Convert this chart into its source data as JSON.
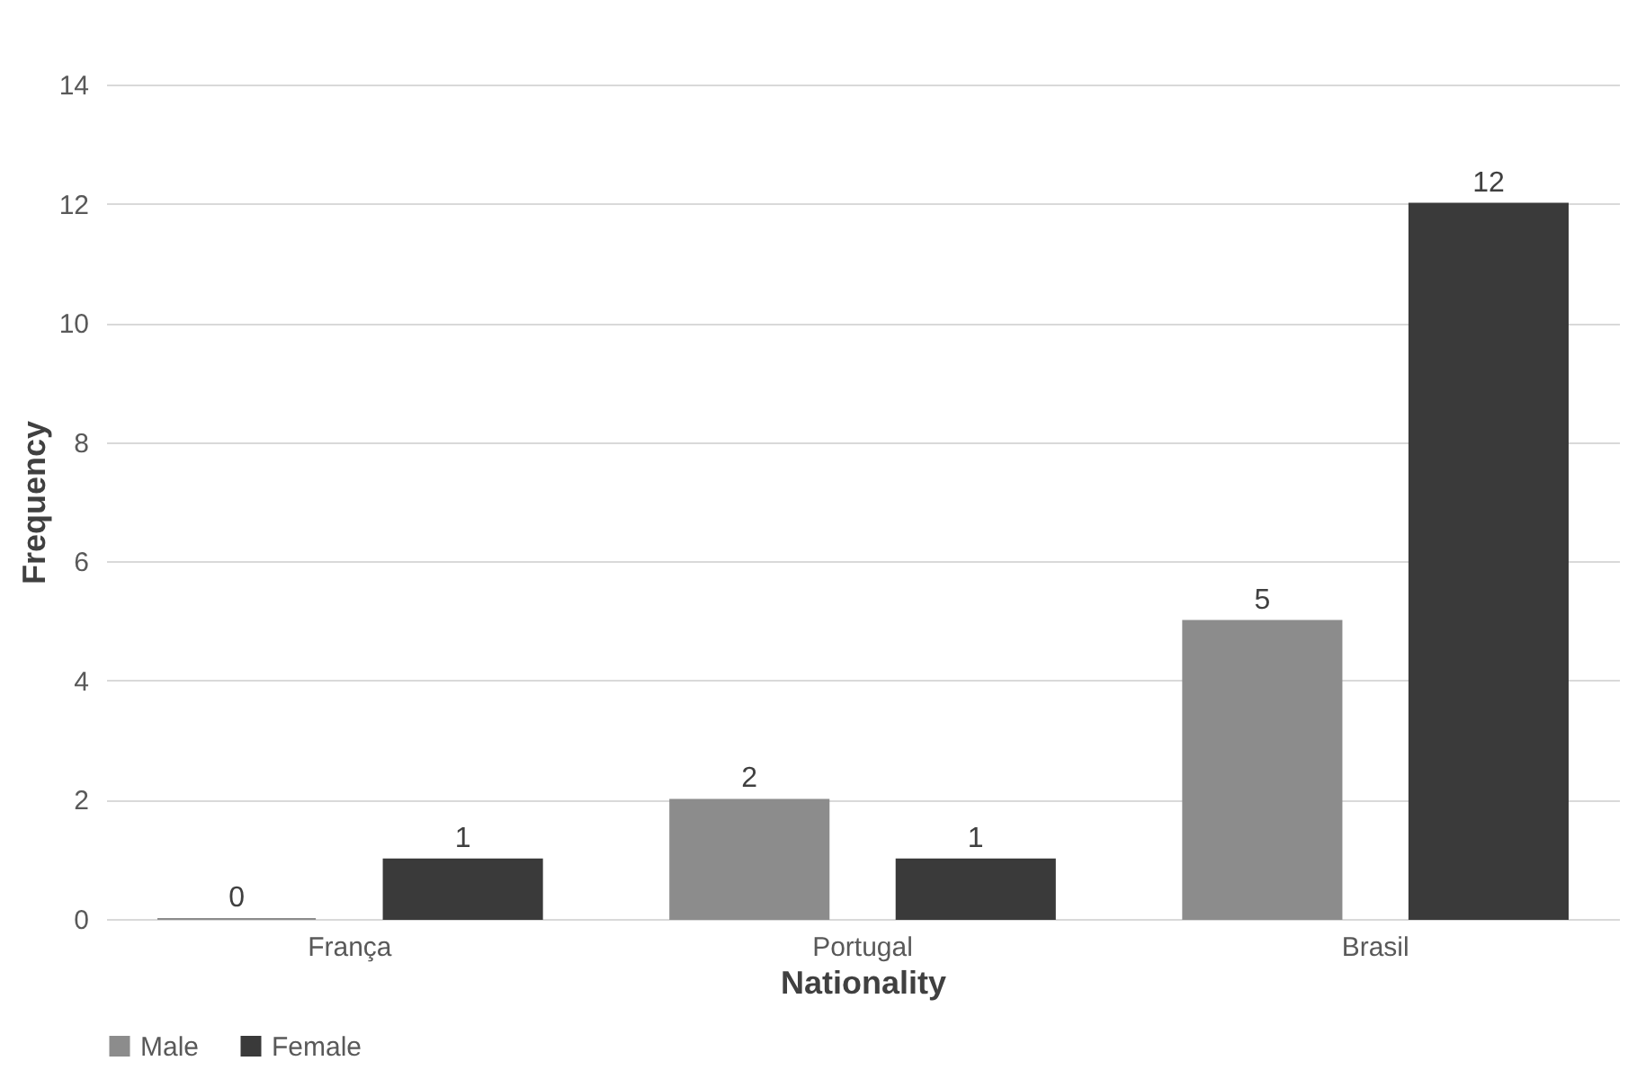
{
  "chart_data": {
    "type": "bar",
    "xlabel": "Nationality",
    "ylabel": "Frequency",
    "categories": [
      "França",
      "Portugal",
      "Brasil"
    ],
    "series": [
      {
        "name": "Male",
        "color": "#8c8c8c",
        "values": [
          0,
          2,
          5
        ]
      },
      {
        "name": "Female",
        "color": "#3a3a3a",
        "values": [
          1,
          1,
          12
        ]
      }
    ],
    "ylim": [
      0,
      14
    ],
    "yticks": [
      0,
      2,
      4,
      6,
      8,
      10,
      12,
      14
    ],
    "grid": "y",
    "legend": "bottom",
    "data_labels": true
  }
}
